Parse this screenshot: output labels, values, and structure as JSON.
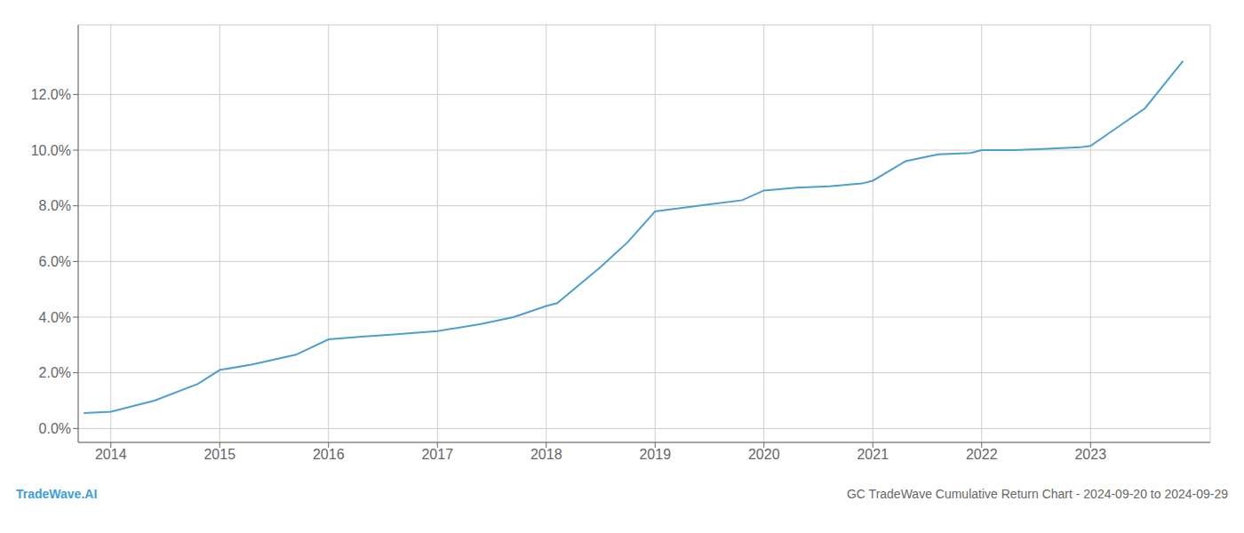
{
  "chart_data": {
    "type": "line",
    "title": "GC TradeWave Cumulative Return Chart - 2024-09-20 to 2024-09-29",
    "x": [
      2013.75,
      2014.0,
      2014.4,
      2014.8,
      2015.0,
      2015.3,
      2015.7,
      2016.0,
      2016.3,
      2016.6,
      2017.0,
      2017.4,
      2017.7,
      2018.0,
      2018.1,
      2018.5,
      2018.75,
      2019.0,
      2019.2,
      2019.5,
      2019.8,
      2020.0,
      2020.3,
      2020.6,
      2020.9,
      2021.0,
      2021.3,
      2021.6,
      2021.9,
      2022.0,
      2022.3,
      2022.6,
      2022.9,
      2023.0,
      2023.5,
      2023.85
    ],
    "values": [
      0.55,
      0.6,
      1.0,
      1.6,
      2.1,
      2.3,
      2.65,
      3.2,
      3.3,
      3.38,
      3.5,
      3.75,
      4.0,
      4.4,
      4.5,
      5.8,
      6.7,
      7.8,
      7.9,
      8.05,
      8.2,
      8.55,
      8.65,
      8.7,
      8.8,
      8.9,
      9.6,
      9.85,
      9.9,
      10.0,
      10.0,
      10.05,
      10.1,
      10.15,
      11.5,
      13.2
    ],
    "color": "#4d9fcc",
    "xlim": [
      2013.7,
      2024.1
    ],
    "ylim": [
      -0.5,
      14.5
    ],
    "xticks": [
      2014,
      2015,
      2016,
      2017,
      2018,
      2019,
      2020,
      2021,
      2022,
      2023
    ],
    "yticks": [
      {
        "value": 0.0,
        "label": "0.0%"
      },
      {
        "value": 2.0,
        "label": "2.0%"
      },
      {
        "value": 4.0,
        "label": "4.0%"
      },
      {
        "value": 6.0,
        "label": "6.0%"
      },
      {
        "value": 8.0,
        "label": "8.0%"
      },
      {
        "value": 10.0,
        "label": "10.0%"
      },
      {
        "value": 12.0,
        "label": "12.0%"
      }
    ],
    "grid": true,
    "annotations": [
      {
        "text": "TradeWave.AI",
        "color": "#3a9fd5"
      }
    ]
  }
}
